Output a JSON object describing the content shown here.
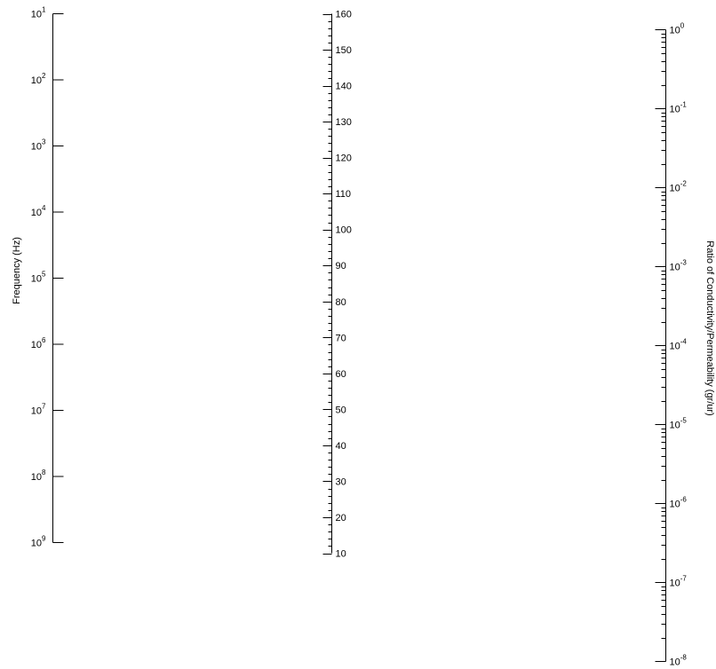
{
  "chart_data": {
    "type": "nomogram",
    "axes": [
      {
        "id": "frequency",
        "title": "Frequency (Hz)",
        "scale": "log",
        "range": [
          10,
          1000000000
        ],
        "ticks": [
          {
            "base": "10",
            "exp": "1"
          },
          {
            "base": "10",
            "exp": "2"
          },
          {
            "base": "10",
            "exp": "3"
          },
          {
            "base": "10",
            "exp": "4"
          },
          {
            "base": "10",
            "exp": "5"
          },
          {
            "base": "10",
            "exp": "6"
          },
          {
            "base": "10",
            "exp": "7"
          },
          {
            "base": "10",
            "exp": "8"
          },
          {
            "base": "10",
            "exp": "9"
          }
        ]
      },
      {
        "id": "middle",
        "title": "",
        "scale": "linear",
        "range": [
          10,
          160
        ],
        "ticks": [
          "160",
          "150",
          "140",
          "130",
          "120",
          "110",
          "100",
          "90",
          "80",
          "70",
          "60",
          "50",
          "40",
          "30",
          "20",
          "10"
        ]
      },
      {
        "id": "ratio",
        "title": "Ratio of Conductivity/Permeability (gr/ur)",
        "scale": "log",
        "range": [
          1e-08,
          1
        ],
        "ticks": [
          {
            "base": "10",
            "exp": "0"
          },
          {
            "base": "10",
            "exp": "-1"
          },
          {
            "base": "10",
            "exp": "-2"
          },
          {
            "base": "10",
            "exp": "-3"
          },
          {
            "base": "10",
            "exp": "-4"
          },
          {
            "base": "10",
            "exp": "-5"
          },
          {
            "base": "10",
            "exp": "-6"
          },
          {
            "base": "10",
            "exp": "-7"
          },
          {
            "base": "10",
            "exp": "-8"
          }
        ]
      }
    ]
  }
}
